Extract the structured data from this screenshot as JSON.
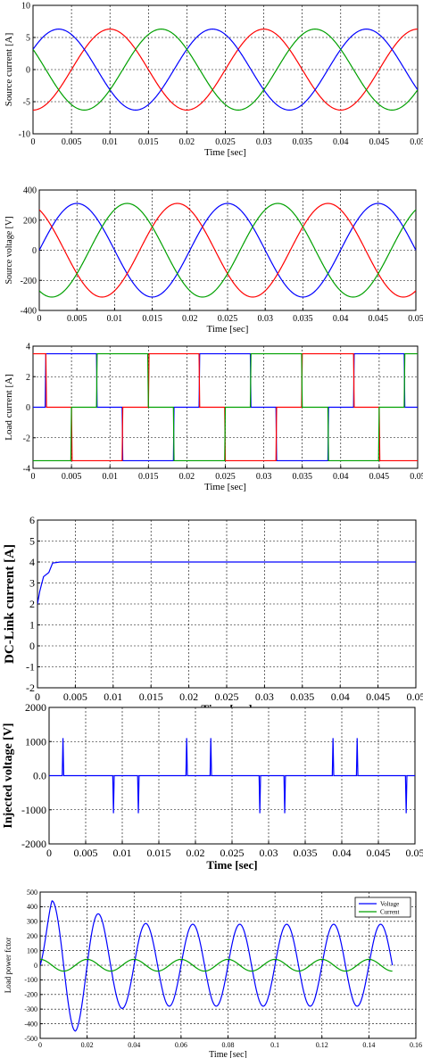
{
  "colors": {
    "phase_a": "#ff0000",
    "phase_b": "#0000ff",
    "phase_c": "#00a000",
    "dc": "#0000ff",
    "grid": "#000000"
  },
  "chart_data": [
    {
      "type": "line",
      "ylabel": "Source current [A]",
      "xlabel": "Time [sec]",
      "xlim": [
        0,
        0.05
      ],
      "ylim": [
        -10,
        10
      ],
      "x_ticks": [
        "0",
        "0.005",
        "0.01",
        "0.015",
        "0.02",
        "0.025",
        "0.03",
        "0.035",
        "0.04",
        "0.045",
        "0.05"
      ],
      "y_ticks": [
        "10",
        "5",
        "0",
        "-5",
        "-10"
      ],
      "grid": true,
      "series": [
        {
          "color": "#ff0000",
          "waveform": "sine",
          "amplitude": 6.3,
          "frequency_hz": 50,
          "phase_deg": -90
        },
        {
          "color": "#0000ff",
          "waveform": "sine",
          "amplitude": 6.3,
          "frequency_hz": 50,
          "phase_deg": 30
        },
        {
          "color": "#00a000",
          "waveform": "sine",
          "amplitude": 6.3,
          "frequency_hz": 50,
          "phase_deg": 150
        }
      ]
    },
    {
      "type": "line",
      "ylabel": "Source voltage [V]",
      "xlabel": "Time [sec]",
      "xlim": [
        0,
        0.05
      ],
      "ylim": [
        -400,
        400
      ],
      "x_ticks": [
        "0",
        "0.005",
        "0.01",
        "0.015",
        "0.02",
        "0.025",
        "0.03",
        "0.035",
        "0.04",
        "0.045",
        "0.05"
      ],
      "y_ticks": [
        "400",
        "200",
        "0",
        "-200",
        "-400"
      ],
      "grid": true,
      "series": [
        {
          "color": "#0000ff",
          "waveform": "sine",
          "amplitude": 311,
          "frequency_hz": 50,
          "phase_deg": 0
        },
        {
          "color": "#ff0000",
          "waveform": "sine",
          "amplitude": 311,
          "frequency_hz": 50,
          "phase_deg": 120
        },
        {
          "color": "#00a000",
          "waveform": "sine",
          "amplitude": 311,
          "frequency_hz": 50,
          "phase_deg": -120
        }
      ]
    },
    {
      "type": "line",
      "ylabel": "Load current [A]",
      "xlabel": "Time [sec]",
      "xlim": [
        0,
        0.05
      ],
      "ylim": [
        -4,
        4
      ],
      "x_ticks": [
        "0",
        "0.005",
        "0.01",
        "0.015",
        "0.02",
        "0.025",
        "0.03",
        "0.035",
        "0.04",
        "0.045",
        "0.05"
      ],
      "y_ticks": [
        "4",
        "2",
        "0",
        "-2",
        "-4"
      ],
      "grid": true,
      "series": [
        {
          "color": "#0000ff",
          "waveform": "six-step",
          "amplitude": 3.5,
          "frequency_hz": 50,
          "phase_deg": 0
        },
        {
          "color": "#ff0000",
          "waveform": "six-step",
          "amplitude": 3.5,
          "frequency_hz": 50,
          "phase_deg": 120
        },
        {
          "color": "#00a000",
          "waveform": "six-step",
          "amplitude": 3.5,
          "frequency_hz": 50,
          "phase_deg": -120
        }
      ]
    },
    {
      "type": "line",
      "ylabel": "DC-Link current [A]",
      "xlabel": "Time [sec]",
      "xlim": [
        0,
        0.05
      ],
      "ylim": [
        -2,
        6
      ],
      "x_ticks": [
        "0",
        "0.005",
        "0.01",
        "0.015",
        "0.02",
        "0.025",
        "0.03",
        "0.035",
        "0.04",
        "0.045",
        "0.05"
      ],
      "y_ticks": [
        "6",
        "5",
        "4",
        "3",
        "2",
        "1",
        "0",
        "-1",
        "-2"
      ],
      "grid": true,
      "series": [
        {
          "color": "#0000ff",
          "x": [
            0,
            0.0003,
            0.0008,
            0.0015,
            0.002,
            0.003,
            0.05
          ],
          "y": [
            2.0,
            2.6,
            3.3,
            3.5,
            3.95,
            4.0,
            4.0
          ]
        }
      ]
    },
    {
      "type": "line",
      "ylabel": "Injected voltage [V]",
      "xlabel": "Time [sec]",
      "xlim": [
        0,
        0.05
      ],
      "ylim": [
        -2000,
        2000
      ],
      "x_ticks": [
        "0",
        "0.005",
        "0.01",
        "0.015",
        "0.02",
        "0.025",
        "0.03",
        "0.035",
        "0.04",
        "0.045",
        "0.05"
      ],
      "y_ticks": [
        "2000",
        "1000",
        "0.0",
        "-1000",
        "-2000"
      ],
      "grid": true,
      "series": [
        {
          "color": "#0000ff",
          "baseline": 0,
          "spikes": [
            {
              "x": 0.0019,
              "y": 1100
            },
            {
              "x": 0.0088,
              "y": -1100
            },
            {
              "x": 0.0122,
              "y": -1100
            },
            {
              "x": 0.0188,
              "y": 1100
            },
            {
              "x": 0.0221,
              "y": 1100
            },
            {
              "x": 0.0288,
              "y": -1100
            },
            {
              "x": 0.0322,
              "y": -1100
            },
            {
              "x": 0.0388,
              "y": 1100
            },
            {
              "x": 0.0421,
              "y": 1100
            },
            {
              "x": 0.0488,
              "y": -1100
            }
          ]
        }
      ]
    },
    {
      "type": "line",
      "ylabel": "Load power fctor",
      "xlabel": "Time [sec]",
      "xlim": [
        0,
        0.16
      ],
      "ylim": [
        -500,
        500
      ],
      "x_ticks": [
        "0",
        "0.02",
        "0.04",
        "0.06",
        "0.08",
        "0.1",
        "0.12",
        "0.14",
        "0.16"
      ],
      "y_ticks": [
        "500",
        "400",
        "300",
        "200",
        "100",
        "0",
        "-100",
        "-200",
        "-300",
        "-400",
        "-500"
      ],
      "grid": true,
      "legend": {
        "position": "top-right",
        "entries": [
          "Voltage",
          "Current"
        ]
      },
      "series": [
        {
          "name": "Voltage",
          "color": "#0000ff",
          "x_end": 0.15,
          "frequency_hz": 50,
          "envelope": {
            "x": [
              0,
              0.005,
              0.015,
              0.03,
              0.05,
              0.15
            ],
            "amplitude": [
              150,
              440,
              450,
              300,
              280,
              280
            ]
          }
        },
        {
          "name": "Current",
          "color": "#00a000",
          "x_end": 0.15,
          "frequency_hz": 50,
          "amplitude": 40,
          "phase_deg": 90
        }
      ]
    }
  ]
}
